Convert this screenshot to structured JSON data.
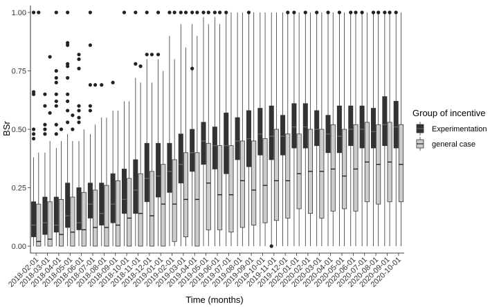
{
  "chart_data": {
    "type": "boxplot",
    "xlabel": "Time (months)",
    "ylabel": "BSr",
    "ylim": [
      0,
      1
    ],
    "yticks": [
      "0.00",
      "0.25",
      "0.50",
      "0.75",
      "1.00"
    ],
    "ytick_values": [
      0,
      0.25,
      0.5,
      0.75,
      1.0
    ],
    "grid": false,
    "legend": {
      "title": "Group of incentive",
      "position": "right",
      "entries": [
        "Experimentation",
        "general case"
      ]
    },
    "colors": {
      "Experimentation": "#333333",
      "general case": "#cccccc"
    },
    "categories": [
      "2018-02-01",
      "2018-03-01",
      "2018-04-01",
      "2018-05-01",
      "2018-06-01",
      "2018-07-01",
      "2018-08-01",
      "2018-09-01",
      "2018-10-01",
      "2018-11-01",
      "2018-12-01",
      "2019-01-01",
      "2019-02-01",
      "2019-03-01",
      "2019-04-01",
      "2019-05-01",
      "2019-06-01",
      "2019-07-01",
      "2019-08-01",
      "2019-09-01",
      "2019-10-01",
      "2019-11-01",
      "2019-12-01",
      "2020-01-01",
      "2020-02-01",
      "2020-03-01",
      "2020-04-01",
      "2020-05-01",
      "2020-06-01",
      "2020-07-01",
      "2020-08-01",
      "2020-09-01",
      "2020-10-01"
    ],
    "tick_labels": [
      "2018-02-01",
      "2018-03-01",
      "2018-04-01",
      "2018-05-01",
      "2018-06-01",
      "2018-07-01",
      "2018-08-01",
      "2018-09-01",
      "2018-10-01",
      "2018-11-01",
      "2018-12-01",
      "2019-01-01",
      "2019-02-01",
      "2019-03-01",
      "2019-04-01",
      "2019-05-01",
      "2019-06-01",
      "2019-07-01",
      "2019-08-01",
      "2019-09-01",
      "2019-10-01",
      "2019-11-01",
      "2019-12-01",
      "2020-01-01",
      "2020-02-01",
      "2020-03-01",
      "2020-04-01",
      "2020-05-01",
      "2020-06-01",
      "2020-07-01",
      "2020-08-01",
      "2020-09-01",
      "2020-10-01"
    ],
    "series": [
      {
        "name": "Experimentation",
        "boxes": [
          {
            "min": 0.0,
            "q1": 0.04,
            "median": 0.09,
            "q3": 0.19,
            "max": 0.38,
            "outliers": [
              0.46,
              0.48,
              0.5,
              0.65,
              0.66,
              1.0
            ]
          },
          {
            "min": 0.0,
            "q1": 0.05,
            "median": 0.1,
            "q3": 0.21,
            "max": 0.4,
            "outliers": [
              0.48,
              0.5,
              0.52,
              0.6,
              0.65
            ]
          },
          {
            "min": 0.0,
            "q1": 0.06,
            "median": 0.09,
            "q3": 0.21,
            "max": 0.42,
            "outliers": [
              0.48,
              0.52,
              0.6,
              0.62,
              0.65,
              0.7,
              0.72,
              0.75,
              1.0
            ]
          },
          {
            "min": 0.0,
            "q1": 0.08,
            "median": 0.13,
            "q3": 0.27,
            "max": 0.48,
            "outliers": [
              0.53,
              0.58,
              0.62,
              0.65,
              0.72,
              0.77,
              0.78,
              0.86,
              0.87,
              1.0
            ]
          },
          {
            "min": 0.0,
            "q1": 0.07,
            "median": 0.1,
            "q3": 0.25,
            "max": 0.45,
            "outliers": [
              0.53,
              0.55,
              0.58,
              0.6,
              0.76,
              0.8,
              0.82
            ]
          },
          {
            "min": 0.0,
            "q1": 0.12,
            "median": 0.18,
            "q3": 0.27,
            "max": 0.48,
            "outliers": [
              0.58,
              0.6,
              0.69,
              0.86,
              1.0
            ]
          },
          {
            "min": 0.0,
            "q1": 0.09,
            "median": 0.14,
            "q3": 0.27,
            "max": 0.55,
            "outliers": [
              0.69
            ]
          },
          {
            "min": 0.0,
            "q1": 0.1,
            "median": 0.18,
            "q3": 0.31,
            "max": 0.58,
            "outliers": [
              0.7
            ]
          },
          {
            "min": 0.0,
            "q1": 0.14,
            "median": 0.2,
            "q3": 0.33,
            "max": 0.62,
            "outliers": [
              1.0
            ]
          },
          {
            "min": 0.0,
            "q1": 0.14,
            "median": 0.24,
            "q3": 0.37,
            "max": 0.72,
            "outliers": [
              0.78,
              1.0
            ]
          },
          {
            "min": 0.0,
            "q1": 0.19,
            "median": 0.29,
            "q3": 0.44,
            "max": 0.8,
            "outliers": [
              0.82,
              1.0
            ]
          },
          {
            "min": 0.0,
            "q1": 0.21,
            "median": 0.3,
            "q3": 0.44,
            "max": 0.8,
            "outliers": [
              0.82,
              1.0
            ]
          },
          {
            "min": 0.0,
            "q1": 0.23,
            "median": 0.32,
            "q3": 0.44,
            "max": 0.9,
            "outliers": [
              1.0
            ]
          },
          {
            "min": 0.0,
            "q1": 0.27,
            "median": 0.35,
            "q3": 0.48,
            "max": 0.95,
            "outliers": [
              1.0
            ]
          },
          {
            "min": 0.0,
            "q1": 0.32,
            "median": 0.4,
            "q3": 0.5,
            "max": 0.95,
            "outliers": [
              0.76,
              1.0
            ]
          },
          {
            "min": 0.0,
            "q1": 0.35,
            "median": 0.45,
            "q3": 0.53,
            "max": 0.98,
            "outliers": [
              1.0
            ]
          },
          {
            "min": 0.0,
            "q1": 0.33,
            "median": 0.43,
            "q3": 0.51,
            "max": 0.98,
            "outliers": [
              1.0
            ]
          },
          {
            "min": 0.0,
            "q1": 0.31,
            "median": 0.43,
            "q3": 0.57,
            "max": 1.0,
            "outliers": [
              1.0
            ]
          },
          {
            "min": 0.0,
            "q1": 0.37,
            "median": 0.45,
            "q3": 0.55,
            "max": 1.0,
            "outliers": []
          },
          {
            "min": 0.0,
            "q1": 0.34,
            "median": 0.46,
            "q3": 0.58,
            "max": 1.0,
            "outliers": [
              1.0
            ]
          },
          {
            "min": 0.0,
            "q1": 0.39,
            "median": 0.48,
            "q3": 0.59,
            "max": 1.0,
            "outliers": []
          },
          {
            "min": 0.0,
            "q1": 0.37,
            "median": 0.47,
            "q3": 0.6,
            "max": 1.0,
            "outliers": [
              0.0
            ]
          },
          {
            "min": 0.0,
            "q1": 0.39,
            "median": 0.47,
            "q3": 0.56,
            "max": 1.0,
            "outliers": []
          },
          {
            "min": 0.0,
            "q1": 0.42,
            "median": 0.51,
            "q3": 0.61,
            "max": 1.0,
            "outliers": [
              1.0
            ]
          },
          {
            "min": 0.0,
            "q1": 0.42,
            "median": 0.51,
            "q3": 0.61,
            "max": 1.0,
            "outliers": [
              1.0
            ]
          },
          {
            "min": 0.0,
            "q1": 0.43,
            "median": 0.5,
            "q3": 0.58,
            "max": 1.0,
            "outliers": [
              1.0
            ]
          },
          {
            "min": 0.0,
            "q1": 0.4,
            "median": 0.48,
            "q3": 0.56,
            "max": 1.0,
            "outliers": [
              1.0
            ]
          },
          {
            "min": 0.0,
            "q1": 0.4,
            "median": 0.47,
            "q3": 0.6,
            "max": 1.0,
            "outliers": [
              1.0
            ]
          },
          {
            "min": 0.0,
            "q1": 0.43,
            "median": 0.5,
            "q3": 0.6,
            "max": 1.0,
            "outliers": [
              1.0
            ]
          },
          {
            "min": 0.0,
            "q1": 0.42,
            "median": 0.5,
            "q3": 0.6,
            "max": 1.0,
            "outliers": [
              1.0
            ]
          },
          {
            "min": 0.0,
            "q1": 0.42,
            "median": 0.49,
            "q3": 0.59,
            "max": 1.0,
            "outliers": [
              1.0
            ]
          },
          {
            "min": 0.0,
            "q1": 0.43,
            "median": 0.52,
            "q3": 0.64,
            "max": 1.0,
            "outliers": [
              1.0
            ]
          },
          {
            "min": 0.0,
            "q1": 0.42,
            "median": 0.51,
            "q3": 0.62,
            "max": 1.0,
            "outliers": [
              1.0
            ]
          }
        ]
      },
      {
        "name": "general case",
        "boxes": [
          {
            "min": 0.0,
            "q1": 0.0,
            "median": 0.02,
            "q3": 0.18,
            "max": 0.4,
            "outliers": [
              1.0
            ]
          },
          {
            "min": 0.0,
            "q1": 0.0,
            "median": 0.03,
            "q3": 0.19,
            "max": 0.45,
            "outliers": [
              0.57,
              0.81
            ]
          },
          {
            "min": 0.0,
            "q1": 0.0,
            "median": 0.05,
            "q3": 0.2,
            "max": 0.45,
            "outliers": [
              0.5
            ]
          },
          {
            "min": 0.0,
            "q1": 0.0,
            "median": 0.06,
            "q3": 0.21,
            "max": 0.45,
            "outliers": [
              0.5,
              0.56
            ]
          },
          {
            "min": 0.0,
            "q1": 0.0,
            "median": 0.07,
            "q3": 0.23,
            "max": 0.5,
            "outliers": []
          },
          {
            "min": 0.0,
            "q1": 0.0,
            "median": 0.08,
            "q3": 0.24,
            "max": 0.52,
            "outliers": [
              0.69
            ]
          },
          {
            "min": 0.0,
            "q1": 0.0,
            "median": 0.08,
            "q3": 0.26,
            "max": 0.55,
            "outliers": []
          },
          {
            "min": 0.0,
            "q1": 0.0,
            "median": 0.09,
            "q3": 0.28,
            "max": 0.58,
            "outliers": []
          },
          {
            "min": 0.0,
            "q1": 0.0,
            "median": 0.12,
            "q3": 0.29,
            "max": 0.62,
            "outliers": []
          },
          {
            "min": 0.0,
            "q1": 0.0,
            "median": 0.14,
            "q3": 0.31,
            "max": 0.7,
            "outliers": [
              0.77
            ]
          },
          {
            "min": 0.0,
            "q1": 0.0,
            "median": 0.13,
            "q3": 0.32,
            "max": 0.7,
            "outliers": [
              0.82
            ]
          },
          {
            "min": 0.0,
            "q1": 0.0,
            "median": 0.18,
            "q3": 0.35,
            "max": 0.75,
            "outliers": []
          },
          {
            "min": 0.0,
            "q1": 0.02,
            "median": 0.18,
            "q3": 0.37,
            "max": 0.8,
            "outliers": [
              1.0
            ]
          },
          {
            "min": 0.0,
            "q1": 0.04,
            "median": 0.2,
            "q3": 0.4,
            "max": 0.85,
            "outliers": [
              1.0
            ]
          },
          {
            "min": 0.0,
            "q1": 0.0,
            "median": 0.2,
            "q3": 0.4,
            "max": 0.9,
            "outliers": [
              1.0
            ]
          },
          {
            "min": 0.0,
            "q1": 0.07,
            "median": 0.27,
            "q3": 0.44,
            "max": 0.95,
            "outliers": [
              1.0
            ]
          },
          {
            "min": 0.0,
            "q1": 0.07,
            "median": 0.22,
            "q3": 0.43,
            "max": 0.95,
            "outliers": [
              1.0
            ]
          },
          {
            "min": 0.0,
            "q1": 0.06,
            "median": 0.22,
            "q3": 0.43,
            "max": 1.0,
            "outliers": []
          },
          {
            "min": 0.0,
            "q1": 0.08,
            "median": 0.28,
            "q3": 0.45,
            "max": 1.0,
            "outliers": []
          },
          {
            "min": 0.0,
            "q1": 0.09,
            "median": 0.24,
            "q3": 0.45,
            "max": 1.0,
            "outliers": []
          },
          {
            "min": 0.0,
            "q1": 0.1,
            "median": 0.26,
            "q3": 0.46,
            "max": 1.0,
            "outliers": []
          },
          {
            "min": 0.0,
            "q1": 0.11,
            "median": 0.28,
            "q3": 0.5,
            "max": 1.0,
            "outliers": []
          },
          {
            "min": 0.0,
            "q1": 0.12,
            "median": 0.28,
            "q3": 0.48,
            "max": 1.0,
            "outliers": [
              1.0
            ]
          },
          {
            "min": 0.0,
            "q1": 0.16,
            "median": 0.31,
            "q3": 0.48,
            "max": 1.0,
            "outliers": []
          },
          {
            "min": 0.0,
            "q1": 0.14,
            "median": 0.32,
            "q3": 0.5,
            "max": 1.0,
            "outliers": []
          },
          {
            "min": 0.0,
            "q1": 0.12,
            "median": 0.32,
            "q3": 0.5,
            "max": 1.0,
            "outliers": []
          },
          {
            "min": 0.0,
            "q1": 0.15,
            "median": 0.33,
            "q3": 0.52,
            "max": 1.0,
            "outliers": []
          },
          {
            "min": 0.0,
            "q1": 0.16,
            "median": 0.3,
            "q3": 0.5,
            "max": 1.0,
            "outliers": []
          },
          {
            "min": 0.0,
            "q1": 0.15,
            "median": 0.33,
            "q3": 0.52,
            "max": 1.0,
            "outliers": [
              1.0
            ]
          },
          {
            "min": 0.0,
            "q1": 0.19,
            "median": 0.36,
            "q3": 0.53,
            "max": 1.0,
            "outliers": []
          },
          {
            "min": 0.0,
            "q1": 0.18,
            "median": 0.35,
            "q3": 0.52,
            "max": 1.0,
            "outliers": [
              1.0
            ]
          },
          {
            "min": 0.0,
            "q1": 0.19,
            "median": 0.36,
            "q3": 0.53,
            "max": 1.0,
            "outliers": [
              1.0
            ]
          },
          {
            "min": 0.0,
            "q1": 0.19,
            "median": 0.35,
            "q3": 0.52,
            "max": 1.0,
            "outliers": []
          }
        ]
      }
    ]
  }
}
